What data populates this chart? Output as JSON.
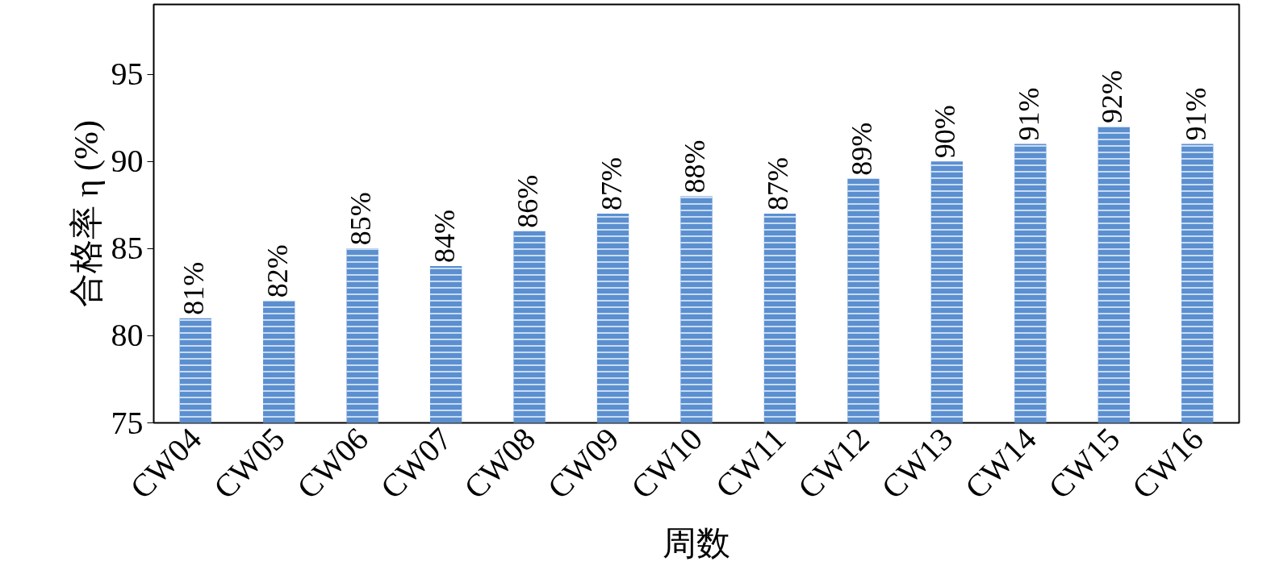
{
  "chart_data": {
    "type": "bar",
    "xlabel": "周数",
    "ylabel": "合格率 η (%)",
    "categories": [
      "CW04",
      "CW05",
      "CW06",
      "CW07",
      "CW08",
      "CW09",
      "CW10",
      "CW11",
      "CW12",
      "CW13",
      "CW14",
      "CW15",
      "CW16"
    ],
    "values": [
      81,
      82,
      85,
      84,
      86,
      87,
      88,
      87,
      89,
      90,
      91,
      92,
      91
    ],
    "value_labels": [
      "81%",
      "82%",
      "85%",
      "84%",
      "86%",
      "87%",
      "88%",
      "87%",
      "89%",
      "90%",
      "91%",
      "92%",
      "91%"
    ],
    "color": "#5b8fd0",
    "ylim": [
      75,
      99
    ],
    "yticks": [
      75,
      80,
      85,
      90,
      95
    ],
    "grid": false
  }
}
